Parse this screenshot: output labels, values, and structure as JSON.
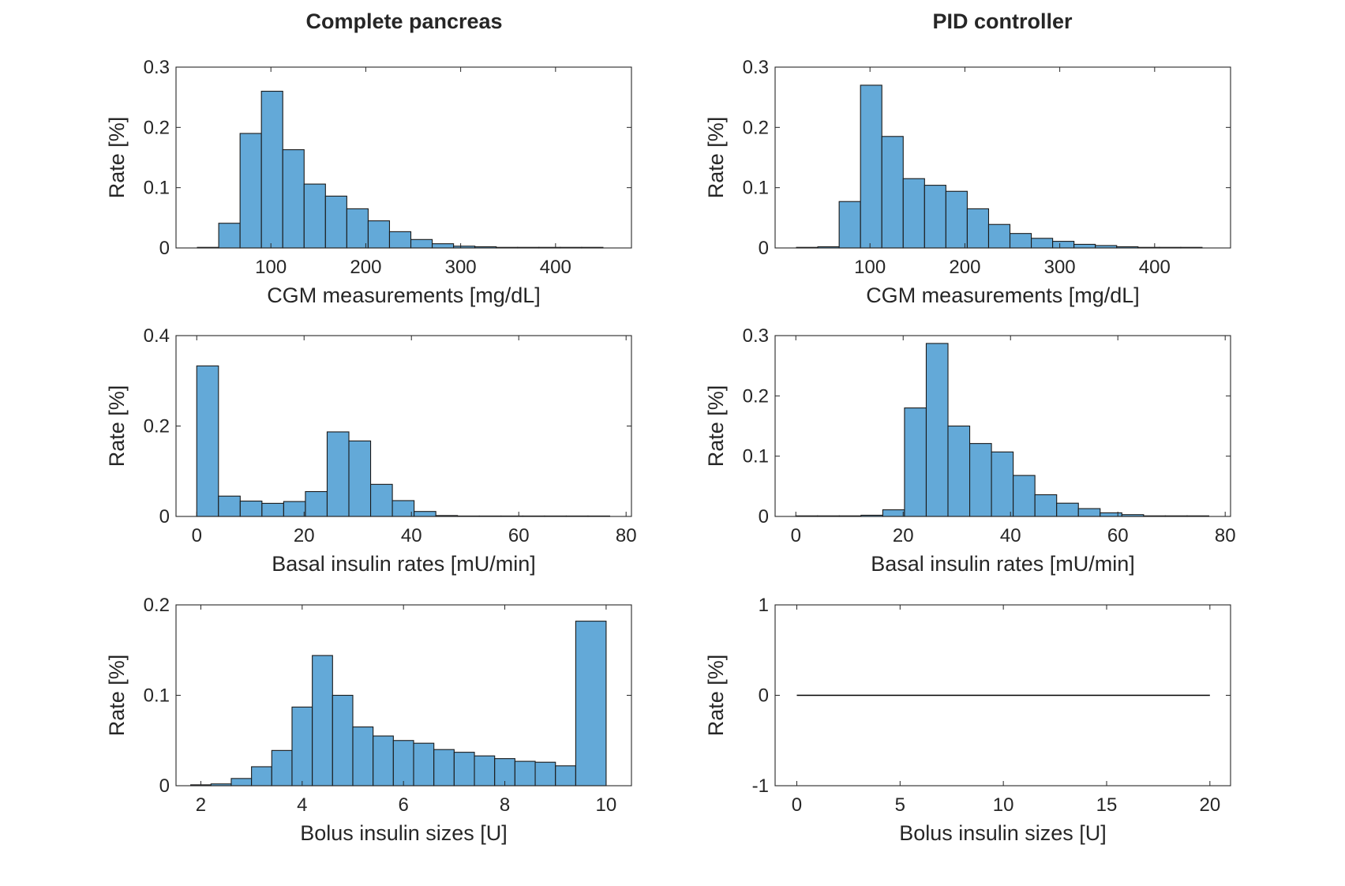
{
  "columns": [
    {
      "title": "Complete pancreas"
    },
    {
      "title": "PID controller"
    }
  ],
  "style": {
    "bar_fill": "#63a9d8",
    "bar_edge": "#1a1a1a",
    "axis_color": "#262626",
    "line_color": "#000000"
  },
  "chart_data": [
    {
      "type": "bar",
      "column_title": "Complete pancreas",
      "xlabel": "CGM measurements [mg/dL]",
      "ylabel": "Rate [%]",
      "xlim": [
        0,
        480
      ],
      "ylim": [
        0,
        0.3
      ],
      "xticks": [
        100,
        200,
        300,
        400
      ],
      "yticks": [
        0,
        0.1,
        0.2,
        0.3
      ],
      "bins": [
        {
          "start": 22.5,
          "end": 45,
          "value": 0.001
        },
        {
          "start": 45,
          "end": 67.5,
          "value": 0.041
        },
        {
          "start": 67.5,
          "end": 90,
          "value": 0.19
        },
        {
          "start": 90,
          "end": 112.5,
          "value": 0.26
        },
        {
          "start": 112.5,
          "end": 135,
          "value": 0.163
        },
        {
          "start": 135,
          "end": 157.5,
          "value": 0.106
        },
        {
          "start": 157.5,
          "end": 180,
          "value": 0.086
        },
        {
          "start": 180,
          "end": 202.5,
          "value": 0.065
        },
        {
          "start": 202.5,
          "end": 225,
          "value": 0.045
        },
        {
          "start": 225,
          "end": 247.5,
          "value": 0.027
        },
        {
          "start": 247.5,
          "end": 270,
          "value": 0.014
        },
        {
          "start": 270,
          "end": 292.5,
          "value": 0.007
        },
        {
          "start": 292.5,
          "end": 315,
          "value": 0.003
        },
        {
          "start": 315,
          "end": 337.5,
          "value": 0.002
        },
        {
          "start": 337.5,
          "end": 360,
          "value": 0.001
        },
        {
          "start": 360,
          "end": 382.5,
          "value": 0.001
        },
        {
          "start": 382.5,
          "end": 405,
          "value": 0.001
        },
        {
          "start": 405,
          "end": 427.5,
          "value": 0.001
        },
        {
          "start": 427.5,
          "end": 450,
          "value": 0.001
        }
      ]
    },
    {
      "type": "bar",
      "column_title": "PID controller",
      "xlabel": "CGM measurements [mg/dL]",
      "ylabel": "Rate [%]",
      "xlim": [
        0,
        480
      ],
      "ylim": [
        0,
        0.3
      ],
      "xticks": [
        100,
        200,
        300,
        400
      ],
      "yticks": [
        0,
        0.1,
        0.2,
        0.3
      ],
      "bins": [
        {
          "start": 22.5,
          "end": 45,
          "value": 0.001
        },
        {
          "start": 45,
          "end": 67.5,
          "value": 0.002
        },
        {
          "start": 67.5,
          "end": 90,
          "value": 0.077
        },
        {
          "start": 90,
          "end": 112.5,
          "value": 0.27
        },
        {
          "start": 112.5,
          "end": 135,
          "value": 0.185
        },
        {
          "start": 135,
          "end": 157.5,
          "value": 0.115
        },
        {
          "start": 157.5,
          "end": 180,
          "value": 0.104
        },
        {
          "start": 180,
          "end": 202.5,
          "value": 0.094
        },
        {
          "start": 202.5,
          "end": 225,
          "value": 0.065
        },
        {
          "start": 225,
          "end": 247.5,
          "value": 0.039
        },
        {
          "start": 247.5,
          "end": 270,
          "value": 0.024
        },
        {
          "start": 270,
          "end": 292.5,
          "value": 0.016
        },
        {
          "start": 292.5,
          "end": 315,
          "value": 0.011
        },
        {
          "start": 315,
          "end": 337.5,
          "value": 0.006
        },
        {
          "start": 337.5,
          "end": 360,
          "value": 0.004
        },
        {
          "start": 360,
          "end": 382.5,
          "value": 0.002
        },
        {
          "start": 382.5,
          "end": 405,
          "value": 0.001
        },
        {
          "start": 405,
          "end": 427.5,
          "value": 0.001
        },
        {
          "start": 427.5,
          "end": 450,
          "value": 0.001
        }
      ]
    },
    {
      "type": "bar",
      "column_title": "Complete pancreas",
      "xlabel": "Basal insulin rates [mU/min]",
      "ylabel": "Rate [%]",
      "xlim": [
        -3.86,
        81
      ],
      "ylim": [
        0,
        0.4
      ],
      "xticks": [
        0,
        20,
        40,
        60,
        80
      ],
      "yticks": [
        0,
        0.2,
        0.4
      ],
      "bins": [
        {
          "start": 0,
          "end": 4.05,
          "value": 0.333
        },
        {
          "start": 4.05,
          "end": 8.1,
          "value": 0.045
        },
        {
          "start": 8.1,
          "end": 12.15,
          "value": 0.034
        },
        {
          "start": 12.15,
          "end": 16.2,
          "value": 0.029
        },
        {
          "start": 16.2,
          "end": 20.25,
          "value": 0.033
        },
        {
          "start": 20.25,
          "end": 24.3,
          "value": 0.055
        },
        {
          "start": 24.3,
          "end": 28.35,
          "value": 0.187
        },
        {
          "start": 28.35,
          "end": 32.4,
          "value": 0.167
        },
        {
          "start": 32.4,
          "end": 36.45,
          "value": 0.071
        },
        {
          "start": 36.45,
          "end": 40.5,
          "value": 0.035
        },
        {
          "start": 40.5,
          "end": 44.55,
          "value": 0.011
        },
        {
          "start": 44.55,
          "end": 48.6,
          "value": 0.002
        },
        {
          "start": 48.6,
          "end": 52.65,
          "value": 0.001
        },
        {
          "start": 52.65,
          "end": 56.7,
          "value": 0.001
        },
        {
          "start": 56.7,
          "end": 60.75,
          "value": 0.001
        },
        {
          "start": 60.75,
          "end": 64.8,
          "value": 0.001
        },
        {
          "start": 64.8,
          "end": 68.85,
          "value": 0.001
        },
        {
          "start": 68.85,
          "end": 72.9,
          "value": 0.001
        },
        {
          "start": 72.9,
          "end": 76.95,
          "value": 0.001
        }
      ]
    },
    {
      "type": "bar",
      "column_title": "PID controller",
      "xlabel": "Basal insulin rates [mU/min]",
      "ylabel": "Rate [%]",
      "xlim": [
        -3.86,
        81
      ],
      "ylim": [
        0,
        0.3
      ],
      "xticks": [
        0,
        20,
        40,
        60,
        80
      ],
      "yticks": [
        0,
        0.1,
        0.2,
        0.3
      ],
      "bins": [
        {
          "start": 0,
          "end": 4.05,
          "value": 0.001
        },
        {
          "start": 4.05,
          "end": 8.1,
          "value": 0.001
        },
        {
          "start": 8.1,
          "end": 12.15,
          "value": 0.001
        },
        {
          "start": 12.15,
          "end": 16.2,
          "value": 0.002
        },
        {
          "start": 16.2,
          "end": 20.25,
          "value": 0.011
        },
        {
          "start": 20.25,
          "end": 24.3,
          "value": 0.18
        },
        {
          "start": 24.3,
          "end": 28.35,
          "value": 0.287
        },
        {
          "start": 28.35,
          "end": 32.4,
          "value": 0.15
        },
        {
          "start": 32.4,
          "end": 36.45,
          "value": 0.121
        },
        {
          "start": 36.45,
          "end": 40.5,
          "value": 0.107
        },
        {
          "start": 40.5,
          "end": 44.55,
          "value": 0.068
        },
        {
          "start": 44.55,
          "end": 48.6,
          "value": 0.036
        },
        {
          "start": 48.6,
          "end": 52.65,
          "value": 0.022
        },
        {
          "start": 52.65,
          "end": 56.7,
          "value": 0.013
        },
        {
          "start": 56.7,
          "end": 60.75,
          "value": 0.006
        },
        {
          "start": 60.75,
          "end": 64.8,
          "value": 0.003
        },
        {
          "start": 64.8,
          "end": 68.85,
          "value": 0.001
        },
        {
          "start": 68.85,
          "end": 72.9,
          "value": 0.001
        },
        {
          "start": 72.9,
          "end": 76.95,
          "value": 0.001
        }
      ]
    },
    {
      "type": "bar",
      "column_title": "Complete pancreas",
      "xlabel": "Bolus insulin sizes [U]",
      "ylabel": "Rate [%]",
      "xlim": [
        1.51,
        10.5
      ],
      "ylim": [
        0,
        0.2
      ],
      "xticks": [
        2,
        4,
        6,
        8,
        10
      ],
      "yticks": [
        0,
        0.1,
        0.2
      ],
      "bins": [
        {
          "start": 1.8,
          "end": 2.2,
          "value": 0.001
        },
        {
          "start": 2.2,
          "end": 2.6,
          "value": 0.002
        },
        {
          "start": 2.6,
          "end": 3.0,
          "value": 0.008
        },
        {
          "start": 3.0,
          "end": 3.4,
          "value": 0.021
        },
        {
          "start": 3.4,
          "end": 3.8,
          "value": 0.039
        },
        {
          "start": 3.8,
          "end": 4.2,
          "value": 0.087
        },
        {
          "start": 4.2,
          "end": 4.6,
          "value": 0.144
        },
        {
          "start": 4.6,
          "end": 5.0,
          "value": 0.1
        },
        {
          "start": 5.0,
          "end": 5.4,
          "value": 0.065
        },
        {
          "start": 5.4,
          "end": 5.8,
          "value": 0.055
        },
        {
          "start": 5.8,
          "end": 6.2,
          "value": 0.05
        },
        {
          "start": 6.2,
          "end": 6.6,
          "value": 0.047
        },
        {
          "start": 6.6,
          "end": 7.0,
          "value": 0.04
        },
        {
          "start": 7.0,
          "end": 7.4,
          "value": 0.037
        },
        {
          "start": 7.4,
          "end": 7.8,
          "value": 0.033
        },
        {
          "start": 7.8,
          "end": 8.2,
          "value": 0.03
        },
        {
          "start": 8.2,
          "end": 8.6,
          "value": 0.027
        },
        {
          "start": 8.6,
          "end": 9.0,
          "value": 0.026
        },
        {
          "start": 9.0,
          "end": 9.4,
          "value": 0.022
        },
        {
          "start": 9.4,
          "end": 10.0,
          "value": 0.182
        }
      ]
    },
    {
      "type": "line",
      "column_title": "PID controller",
      "xlabel": "Bolus insulin sizes [U]",
      "ylabel": "Rate [%]",
      "xlim": [
        -1.05,
        21
      ],
      "ylim": [
        -1,
        1
      ],
      "xticks": [
        0,
        5,
        10,
        15,
        20
      ],
      "yticks": [
        -1,
        0,
        1
      ],
      "line": {
        "x": [
          0,
          20
        ],
        "y": [
          0,
          0
        ]
      }
    }
  ]
}
